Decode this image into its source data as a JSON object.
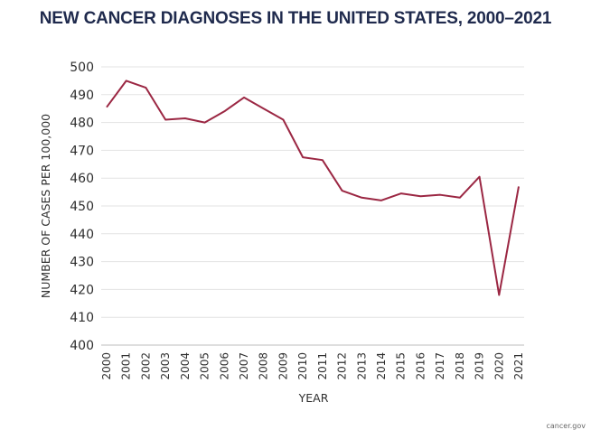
{
  "chart_data": {
    "type": "line",
    "title": "NEW CANCER DIAGNOSES IN THE UNITED STATES, 2000–2021",
    "xlabel": "YEAR",
    "ylabel": "NUMBER OF CASES PER 100,000",
    "ylim": [
      400,
      500
    ],
    "yticks": [
      400,
      410,
      420,
      430,
      440,
      450,
      460,
      470,
      480,
      490,
      500
    ],
    "grid": true,
    "line_color": "#9b2743",
    "x": [
      "2000",
      "2001",
      "2002",
      "2003",
      "2004",
      "2005",
      "2006",
      "2007",
      "2008",
      "2009",
      "2010",
      "2011",
      "2012",
      "2013",
      "2014",
      "2015",
      "2016",
      "2017",
      "2018",
      "2019",
      "2020",
      "2021"
    ],
    "series": [
      {
        "values": [
          485.5,
          495,
          492.5,
          481,
          481.5,
          480,
          484,
          489,
          485,
          481,
          467.5,
          466.5,
          455.5,
          453,
          452,
          454.5,
          453.5,
          454,
          453,
          460.5,
          418,
          457
        ]
      }
    ]
  },
  "source": "cancer.gov"
}
